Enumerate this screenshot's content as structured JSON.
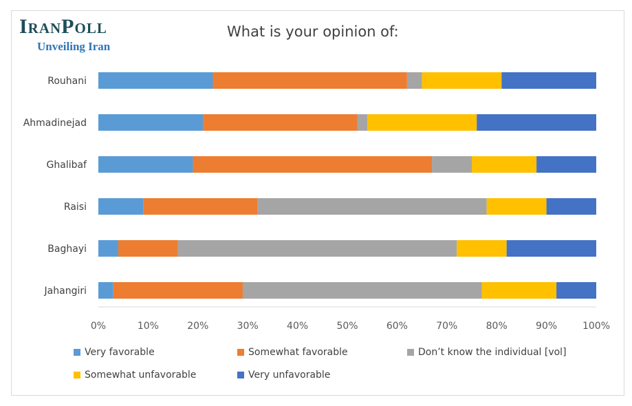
{
  "logo": {
    "title": "IranPoll",
    "subtitle": "Unveiling Iran"
  },
  "chart_data": {
    "type": "bar",
    "orientation": "horizontal",
    "stacked": true,
    "title": "What is your opinion of:",
    "categories": [
      "Rouhani",
      "Ahmadinejad",
      "Ghalibaf",
      "Raisi",
      "Baghayi",
      "Jahangiri"
    ],
    "series": [
      {
        "name": "Very favorable",
        "color": "#5b9bd5",
        "values": [
          23,
          21,
          19,
          9,
          4,
          3
        ]
      },
      {
        "name": "Somewhat favorable",
        "color": "#ed7d31",
        "values": [
          39,
          31,
          48,
          23,
          12,
          26
        ]
      },
      {
        "name": "Don’t know the individual [vol]",
        "color": "#a5a5a5",
        "values": [
          3,
          2,
          8,
          46,
          56,
          48
        ]
      },
      {
        "name": "Somewhat unfavorable",
        "color": "#ffc000",
        "values": [
          16,
          22,
          13,
          12,
          10,
          15
        ]
      },
      {
        "name": "Very unfavorable",
        "color": "#4472c4",
        "values": [
          19,
          24,
          12,
          10,
          18,
          8
        ]
      }
    ],
    "xlim": [
      0,
      100
    ],
    "x_ticks": [
      "0%",
      "10%",
      "20%",
      "30%",
      "40%",
      "50%",
      "60%",
      "70%",
      "80%",
      "90%",
      "100%"
    ],
    "legend_position": "bottom",
    "grid": false
  }
}
